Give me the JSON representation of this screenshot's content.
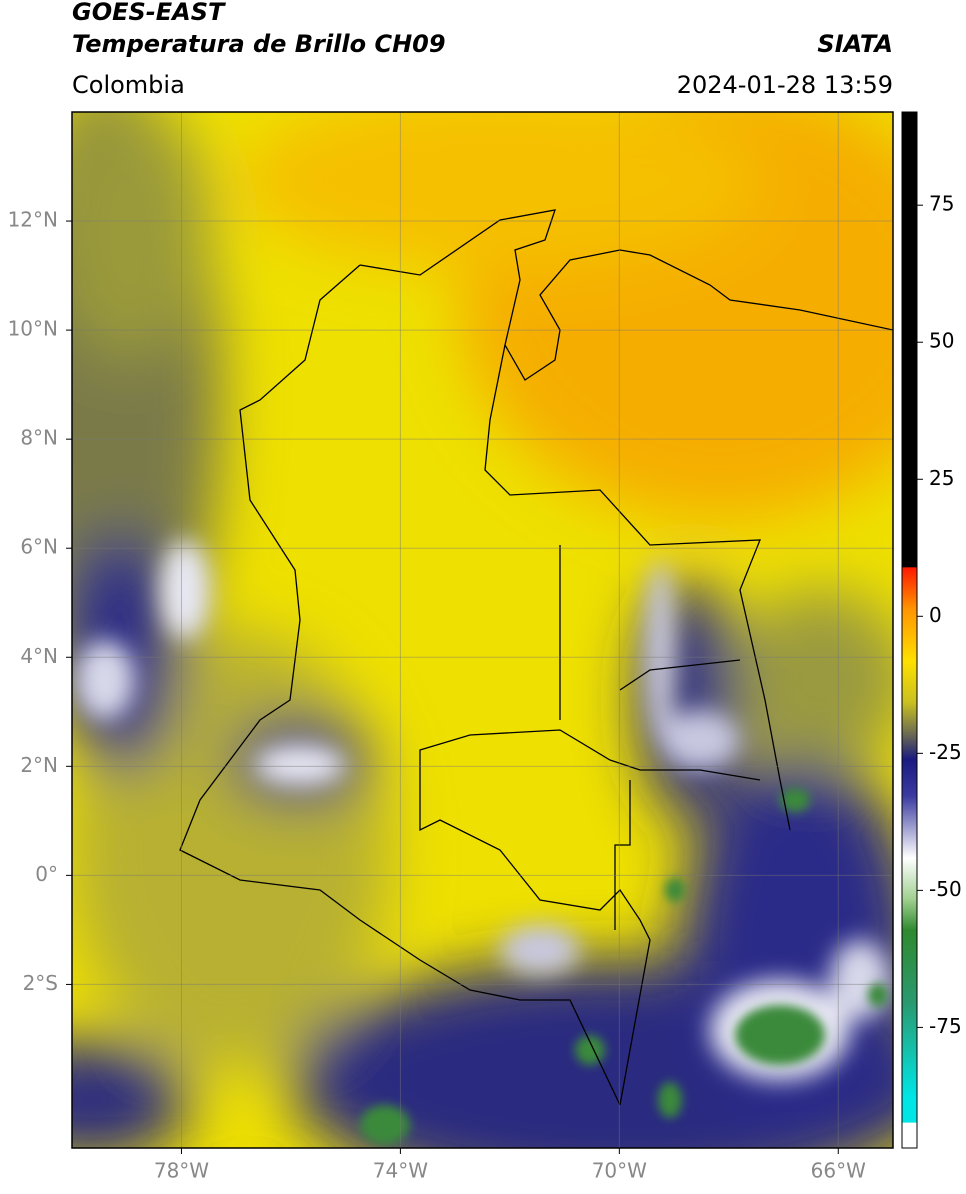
{
  "chart_data": {
    "type": "map",
    "title": "GOES-EAST",
    "subtitle": "Temperatura de Brillo CH09",
    "region": "Colombia",
    "source": "SIATA",
    "timestamp": "2024-01-28 13:59",
    "xlim": [
      -80,
      -65
    ],
    "ylim": [
      -5,
      14
    ],
    "xticks": [
      {
        "value": -78,
        "label": "78°W"
      },
      {
        "value": -74,
        "label": "74°W"
      },
      {
        "value": -70,
        "label": "70°W"
      },
      {
        "value": -66,
        "label": "66°W"
      }
    ],
    "yticks": [
      {
        "value": 12,
        "label": "12°N"
      },
      {
        "value": 10,
        "label": "10°N"
      },
      {
        "value": 8,
        "label": "8°N"
      },
      {
        "value": 6,
        "label": "6°N"
      },
      {
        "value": 4,
        "label": "4°N"
      },
      {
        "value": 2,
        "label": "2°N"
      },
      {
        "value": 0,
        "label": "0°"
      },
      {
        "value": -2,
        "label": "2°S"
      }
    ],
    "grid": true,
    "colorbar": {
      "lim": [
        -97,
        92
      ],
      "ticks": [
        75,
        50,
        25,
        0,
        -25,
        -50,
        -75
      ]
    }
  }
}
